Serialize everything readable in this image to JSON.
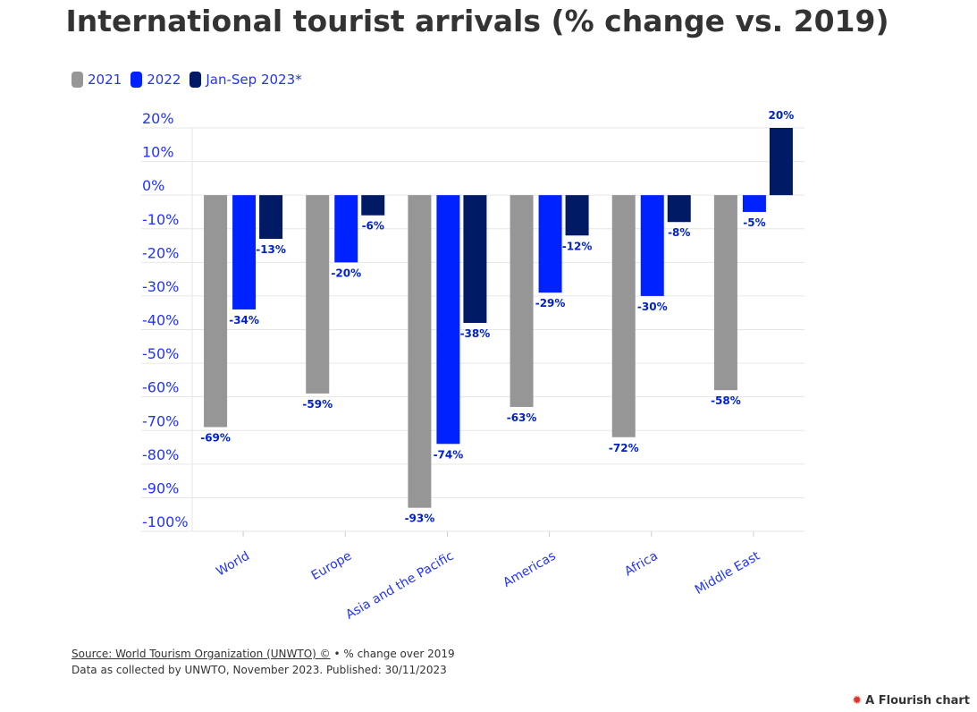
{
  "chart_data": {
    "type": "bar",
    "title": "International tourist arrivals (% change vs. 2019)",
    "categories": [
      "World",
      "Europe",
      "Asia and the Pacific",
      "Americas",
      "Africa",
      "Middle East"
    ],
    "series": [
      {
        "name": "2021",
        "color": "#969696",
        "values": [
          -69,
          -59,
          -93,
          -63,
          -72,
          -58
        ]
      },
      {
        "name": "2022",
        "color": "#0022ff",
        "values": [
          -34,
          -20,
          -74,
          -29,
          -30,
          -5
        ]
      },
      {
        "name": "Jan-Sep 2023*",
        "color": "#001a66",
        "values": [
          -13,
          -6,
          -38,
          -12,
          -8,
          20
        ]
      }
    ],
    "ylim": [
      -100,
      20
    ],
    "yticks": [
      20,
      10,
      0,
      -10,
      -20,
      -30,
      -40,
      -50,
      -60,
      -70,
      -80,
      -90,
      -100
    ],
    "tick_suffix": "%",
    "label_suffix": "%",
    "grid": true,
    "legend": "top-left"
  },
  "footer": {
    "source_link": "Source: World Tourism Organization (UNWTO) ©",
    "source_note": " • % change over 2019",
    "line2": "Data as collected by UNWTO, November 2023. Published: 30/11/2023"
  },
  "brand": "A Flourish chart"
}
